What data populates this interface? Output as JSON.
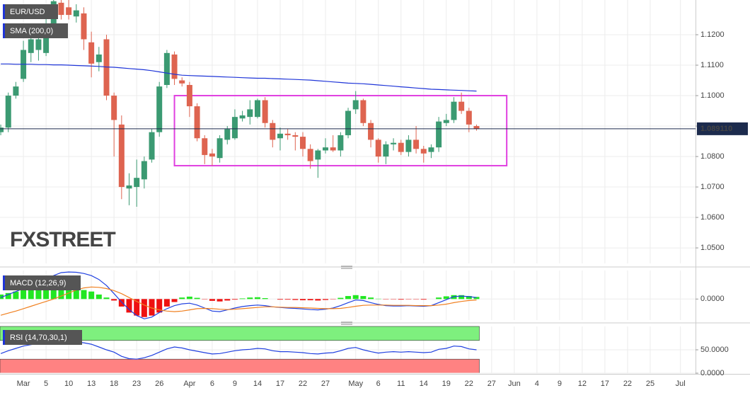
{
  "chart_data": [
    {
      "type": "candlestick",
      "title": "EUR/USD",
      "x": [
        0,
        1,
        2,
        3,
        4,
        5,
        6,
        7,
        8,
        9,
        10,
        11,
        12,
        13,
        14,
        15,
        16,
        17,
        18,
        19,
        20,
        21,
        22,
        23,
        24,
        25,
        26,
        27,
        28,
        29,
        30,
        31,
        32,
        33,
        34,
        35,
        36,
        37,
        38,
        39,
        40,
        41,
        42,
        43,
        44,
        45,
        46,
        47,
        48,
        49,
        50,
        51,
        52,
        53,
        54,
        55,
        56,
        57,
        58,
        59,
        60,
        61,
        62,
        63
      ],
      "open": [
        1.088,
        1.0895,
        1.1,
        1.1055,
        1.114,
        1.115,
        1.114,
        1.123,
        1.1305,
        1.129,
        1.126,
        1.127,
        1.1175,
        1.111,
        1.1185,
        1.1,
        1.0905,
        1.0695,
        1.07,
        1.0725,
        1.079,
        1.088,
        1.1035,
        1.1135,
        1.105,
        1.1035,
        1.0965,
        1.086,
        1.081,
        1.0795,
        1.0855,
        1.086,
        1.0925,
        1.093,
        1.093,
        1.0985,
        1.091,
        1.086,
        1.0875,
        1.087,
        1.0865,
        1.0825,
        1.079,
        1.082,
        1.083,
        1.082,
        1.087,
        1.0955,
        1.0985,
        1.091,
        1.0855,
        1.08,
        1.084,
        1.0845,
        1.0815,
        1.0855,
        1.0825,
        1.0815,
        1.083,
        1.091,
        1.092,
        1.098,
        1.095,
        1.09
      ],
      "high": [
        1.0905,
        1.101,
        1.1045,
        1.118,
        1.1215,
        1.12,
        1.128,
        1.1314,
        1.1314,
        1.1314,
        1.13,
        1.129,
        1.121,
        1.116,
        1.12,
        1.101,
        1.0935,
        1.0745,
        1.079,
        1.08,
        1.089,
        1.1045,
        1.115,
        1.1145,
        1.106,
        1.1045,
        1.0975,
        1.087,
        1.0825,
        1.087,
        1.09,
        1.0955,
        1.095,
        1.0985,
        1.099,
        1.0995,
        1.092,
        1.0895,
        1.089,
        1.088,
        1.088,
        1.084,
        1.0825,
        1.086,
        1.087,
        1.088,
        1.096,
        1.1015,
        1.099,
        1.092,
        1.086,
        1.085,
        1.086,
        1.0855,
        1.087,
        1.09,
        1.0835,
        1.084,
        1.093,
        1.094,
        1.0995,
        1.101,
        1.096,
        1.0905
      ],
      "low": [
        1.087,
        1.088,
        1.099,
        1.1045,
        1.111,
        1.1115,
        1.113,
        1.121,
        1.125,
        1.125,
        1.124,
        1.115,
        1.106,
        1.108,
        1.0985,
        1.08,
        1.066,
        1.064,
        1.0635,
        1.0695,
        1.078,
        1.0865,
        1.1025,
        1.1035,
        1.103,
        1.093,
        1.085,
        1.0775,
        1.077,
        1.078,
        1.084,
        1.0855,
        1.0915,
        1.0905,
        1.0925,
        1.0895,
        1.083,
        1.082,
        1.0855,
        1.082,
        1.08,
        1.076,
        1.073,
        1.081,
        1.0815,
        1.08,
        1.086,
        1.094,
        1.09,
        1.083,
        1.078,
        1.0775,
        1.082,
        1.0805,
        1.08,
        1.081,
        1.078,
        1.0795,
        1.0815,
        1.09,
        1.091,
        1.094,
        1.088,
        1.0885
      ],
      "close": [
        1.0895,
        1.1,
        1.103,
        1.115,
        1.1185,
        1.1185,
        1.123,
        1.131,
        1.1265,
        1.1265,
        1.128,
        1.1185,
        1.1105,
        1.1135,
        1.1,
        1.092,
        1.07,
        1.0705,
        1.073,
        1.0785,
        1.088,
        1.103,
        1.114,
        1.1055,
        1.104,
        1.0965,
        1.086,
        1.0805,
        1.08,
        1.086,
        1.089,
        1.093,
        1.0935,
        1.0955,
        1.0985,
        1.091,
        1.0855,
        1.0875,
        1.087,
        1.0865,
        1.0825,
        1.0785,
        1.082,
        1.083,
        1.082,
        1.087,
        1.095,
        1.0985,
        1.091,
        1.0855,
        1.08,
        1.084,
        1.0845,
        1.0815,
        1.0855,
        1.0825,
        1.081,
        1.083,
        1.0915,
        1.092,
        1.098,
        1.095,
        1.0905,
        1.0891
      ],
      "up_color": "#3b9a72",
      "down_color": "#de6450",
      "overlays": [
        {
          "title": "SMA (200,0)",
          "color": "#1f35d8",
          "values": [
            1.1104,
            1.1104,
            1.1103,
            1.1103,
            1.1103,
            1.1102,
            1.1102,
            1.1101,
            1.1101,
            1.11,
            1.1099,
            1.1098,
            1.1097,
            1.1096,
            1.1094,
            1.1093,
            1.1091,
            1.1089,
            1.1087,
            1.1085,
            1.1082,
            1.1078,
            1.1074,
            1.107,
            1.1067,
            1.1066,
            1.1065,
            1.1064,
            1.1063,
            1.1062,
            1.1061,
            1.106,
            1.1059,
            1.1058,
            1.1057,
            1.1057,
            1.1056,
            1.1055,
            1.1054,
            1.1053,
            1.1052,
            1.1051,
            1.1049,
            1.1047,
            1.1045,
            1.1043,
            1.1041,
            1.104,
            1.1039,
            1.1037,
            1.1035,
            1.1033,
            1.1031,
            1.1029,
            1.1027,
            1.1025,
            1.1023,
            1.1021,
            1.102,
            1.1019,
            1.1018,
            1.1017,
            1.1016,
            1.1015
          ]
        }
      ],
      "annotations": [
        {
          "type": "rectangle",
          "x": [
            23,
            67
          ],
          "y": [
            1.077,
            1.1
          ],
          "color": "#e040e0"
        }
      ],
      "last_price": {
        "value": 1.08911,
        "label": "1.089110"
      },
      "watermark": "FXSTREET",
      "xlim": [
        -0.1,
        92
      ],
      "xticks": [
        {
          "value": 3,
          "label": "Mar"
        },
        {
          "value": 6,
          "label": "5"
        },
        {
          "value": 9,
          "label": "10"
        },
        {
          "value": 12,
          "label": "13"
        },
        {
          "value": 15,
          "label": "18"
        },
        {
          "value": 18,
          "label": "23"
        },
        {
          "value": 21,
          "label": "26"
        },
        {
          "value": 25,
          "label": "Apr"
        },
        {
          "value": 28,
          "label": "6"
        },
        {
          "value": 31,
          "label": "9"
        },
        {
          "value": 34,
          "label": "14"
        },
        {
          "value": 37,
          "label": "17"
        },
        {
          "value": 40,
          "label": "22"
        },
        {
          "value": 43,
          "label": "27"
        },
        {
          "value": 47,
          "label": "May"
        },
        {
          "value": 50,
          "label": "6"
        },
        {
          "value": 53,
          "label": "11"
        },
        {
          "value": 56,
          "label": "14"
        },
        {
          "value": 59,
          "label": "19"
        },
        {
          "value": 62,
          "label": "22"
        },
        {
          "value": 65,
          "label": "27"
        },
        {
          "value": 68,
          "label": "Jun"
        },
        {
          "value": 71,
          "label": "4"
        },
        {
          "value": 74,
          "label": "9"
        },
        {
          "value": 77,
          "label": "12"
        },
        {
          "value": 80,
          "label": "17"
        },
        {
          "value": 83,
          "label": "22"
        },
        {
          "value": 86,
          "label": "25"
        },
        {
          "value": 90,
          "label": "Jul"
        }
      ],
      "ylim": [
        1.0449,
        1.1314
      ],
      "yticks": [
        {
          "value": 1.05,
          "label": "1.0500"
        },
        {
          "value": 1.06,
          "label": "1.0600"
        },
        {
          "value": 1.07,
          "label": "1.0700"
        },
        {
          "value": 1.08,
          "label": "1.0800"
        },
        {
          "value": 1.09,
          "label": "1.0900"
        },
        {
          "value": 1.1,
          "label": "1.1000"
        },
        {
          "value": 1.11,
          "label": "1.1100"
        },
        {
          "value": 1.12,
          "label": "1.1200"
        }
      ],
      "grid": true
    },
    {
      "type": "macd",
      "title": "MACD (12,26,9)",
      "histogram": {
        "up_color": "#22e622",
        "down_color": "#ee1111",
        "values": [
          0.0015,
          0.002,
          0.0025,
          0.003,
          0.0035,
          0.0038,
          0.004,
          0.0042,
          0.004,
          0.004,
          0.0035,
          0.003,
          0.0025,
          0.0015,
          0.0005,
          -0.0005,
          -0.0025,
          -0.0045,
          -0.0055,
          -0.006,
          -0.0055,
          -0.0045,
          -0.0025,
          -0.001,
          0.0005,
          0.0008,
          0.0004,
          -0.0001,
          -0.0006,
          -0.0008,
          -0.0005,
          -0.0002,
          0.0002,
          0.0005,
          0.0006,
          0.0003,
          0.0,
          -0.0002,
          -0.0002,
          -0.0003,
          -0.0004,
          -0.0004,
          -0.0005,
          -0.0003,
          -0.0001,
          0.0004,
          0.001,
          0.0013,
          0.001,
          0.0005,
          0.0001,
          -0.0001,
          -0.0001,
          -0.0002,
          -0.0001,
          -0.0001,
          -0.0002,
          0.0,
          0.0005,
          0.0009,
          0.0013,
          0.0013,
          0.001,
          0.0007
        ]
      },
      "series": [
        {
          "color": "#2040e0",
          "values": [
            0.0005,
            0.0015,
            0.0025,
            0.0035,
            0.0045,
            0.0055,
            0.0065,
            0.0078,
            0.0088,
            0.009,
            0.0089,
            0.0085,
            0.0078,
            0.0065,
            0.0045,
            0.0018,
            -0.001,
            -0.0035,
            -0.0055,
            -0.0066,
            -0.006,
            -0.0045,
            -0.0032,
            -0.0022,
            -0.0016,
            -0.0014,
            -0.002,
            -0.003,
            -0.004,
            -0.0042,
            -0.0036,
            -0.003,
            -0.0025,
            -0.0022,
            -0.002,
            -0.0022,
            -0.0026,
            -0.0028,
            -0.003,
            -0.0031,
            -0.0033,
            -0.0035,
            -0.0036,
            -0.0034,
            -0.003,
            -0.0022,
            -0.0012,
            -0.0003,
            -0.0005,
            -0.0012,
            -0.0018,
            -0.0022,
            -0.0023,
            -0.0023,
            -0.0022,
            -0.0023,
            -0.0024,
            -0.0022,
            -0.0012,
            -0.0002,
            0.0008,
            0.001,
            0.0008,
            0.0005
          ]
        },
        {
          "color": "#f08020",
          "values": [
            -0.0054,
            -0.0047,
            -0.004,
            -0.0032,
            -0.0024,
            -0.0016,
            -0.0008,
            0.0,
            0.001,
            0.002,
            0.003,
            0.0037,
            0.004,
            0.0039,
            0.0035,
            0.0028,
            0.0018,
            0.0005,
            -0.0008,
            -0.002,
            -0.003,
            -0.0036,
            -0.004,
            -0.0042,
            -0.004,
            -0.0036,
            -0.0032,
            -0.0031,
            -0.0032,
            -0.0034,
            -0.0035,
            -0.0034,
            -0.0032,
            -0.003,
            -0.0028,
            -0.0026,
            -0.0026,
            -0.0027,
            -0.0028,
            -0.0028,
            -0.0029,
            -0.003,
            -0.0031,
            -0.0032,
            -0.0032,
            -0.0031,
            -0.0028,
            -0.0024,
            -0.0021,
            -0.002,
            -0.002,
            -0.002,
            -0.0021,
            -0.0021,
            -0.0021,
            -0.0022,
            -0.0022,
            -0.0022,
            -0.002,
            -0.0017,
            -0.0012,
            -0.0008,
            -0.0005,
            -0.0003
          ]
        }
      ],
      "ylim": [
        -0.007,
        0.0095
      ],
      "yticks": [
        {
          "value": 0,
          "label": "0.0000"
        }
      ]
    },
    {
      "type": "rsi",
      "title": "RSI (14,70,30,1)",
      "bands": [
        {
          "range": [
            70,
            100
          ],
          "color": "#7ef07e"
        },
        {
          "range": [
            0,
            30
          ],
          "color": "#ff8282"
        }
      ],
      "series": [
        {
          "color": "#2040e0",
          "values": [
            42,
            48,
            53,
            58,
            61,
            63,
            65,
            67,
            68,
            68,
            67,
            65,
            62,
            56,
            50,
            45,
            36,
            31,
            30,
            33,
            38,
            45,
            52,
            56,
            54,
            50,
            47,
            44,
            41,
            42,
            45,
            48,
            50,
            51,
            53,
            52,
            48,
            46,
            46,
            45,
            44,
            42,
            41,
            43,
            44,
            48,
            53,
            55,
            50,
            46,
            43,
            45,
            46,
            45,
            46,
            45,
            44,
            45,
            51,
            53,
            58,
            57,
            52,
            50
          ]
        }
      ],
      "ylim": [
        0,
        100
      ],
      "yticks": [
        {
          "value": 0,
          "label": "0.0000"
        },
        {
          "value": 50,
          "label": "50.0000"
        }
      ]
    }
  ]
}
